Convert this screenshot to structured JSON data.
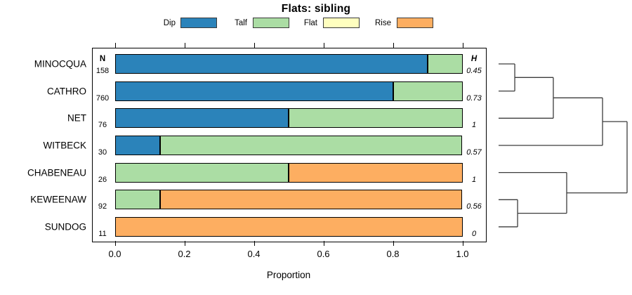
{
  "chart_data": {
    "type": "bar",
    "orientation": "horizontal-stacked",
    "title": "Flats: sibling",
    "xlabel": "Proportion",
    "xlim": [
      0,
      1
    ],
    "x_ticks": [
      {
        "value": 0.0,
        "label": "0.0"
      },
      {
        "value": 0.2,
        "label": "0.2"
      },
      {
        "value": 0.4,
        "label": "0.4"
      },
      {
        "value": 0.6,
        "label": "0.6"
      },
      {
        "value": 0.8,
        "label": "0.8"
      },
      {
        "value": 1.0,
        "label": "1.0"
      }
    ],
    "legend": [
      {
        "label": "Dip",
        "color": "#2B83BA"
      },
      {
        "label": "Talf",
        "color": "#ABDDA4"
      },
      {
        "label": "Flat",
        "color": "#FFFFBF"
      },
      {
        "label": "Rise",
        "color": "#FDAE61"
      }
    ],
    "n_header": "N",
    "h_header": "H",
    "rows": [
      {
        "name": "MINOCQUA",
        "n": "158",
        "h": "0.45",
        "segments": [
          {
            "cat": "Dip",
            "value": 0.9
          },
          {
            "cat": "Talf",
            "value": 0.1
          }
        ]
      },
      {
        "name": "CATHRO",
        "n": "760",
        "h": "0.73",
        "segments": [
          {
            "cat": "Dip",
            "value": 0.8
          },
          {
            "cat": "Talf",
            "value": 0.2
          }
        ]
      },
      {
        "name": "NET",
        "n": "76",
        "h": "1",
        "segments": [
          {
            "cat": "Dip",
            "value": 0.5
          },
          {
            "cat": "Talf",
            "value": 0.5
          }
        ]
      },
      {
        "name": "WITBECK",
        "n": "30",
        "h": "0.57",
        "segments": [
          {
            "cat": "Dip",
            "value": 0.13
          },
          {
            "cat": "Talf",
            "value": 0.87
          }
        ]
      },
      {
        "name": "CHABENEAU",
        "n": "26",
        "h": "1",
        "segments": [
          {
            "cat": "Talf",
            "value": 0.5
          },
          {
            "cat": "Rise",
            "value": 0.5
          }
        ]
      },
      {
        "name": "KEWEENAW",
        "n": "92",
        "h": "0.56",
        "segments": [
          {
            "cat": "Talf",
            "value": 0.13
          },
          {
            "cat": "Rise",
            "value": 0.87
          }
        ]
      },
      {
        "name": "SUNDOG",
        "n": "11",
        "h": "0",
        "segments": [
          {
            "cat": "Rise",
            "value": 1.0
          }
        ]
      }
    ],
    "dendrogram": {
      "leaf_order": [
        "MINOCQUA",
        "CATHRO",
        "NET",
        "WITBECK",
        "CHABENEAU",
        "KEWEENAW",
        "SUNDOG"
      ],
      "merges": [
        {
          "a": "L0",
          "b": "L1",
          "height": 0.126
        },
        {
          "a": "M0",
          "b": "L2",
          "height": 0.426
        },
        {
          "a": "M1",
          "b": "L3",
          "height": 0.809
        },
        {
          "a": "L5",
          "b": "L6",
          "height": 0.148
        },
        {
          "a": "L4",
          "b": "M3",
          "height": 0.53
        },
        {
          "a": "M2",
          "b": "M4",
          "height": 1.0
        }
      ]
    }
  }
}
